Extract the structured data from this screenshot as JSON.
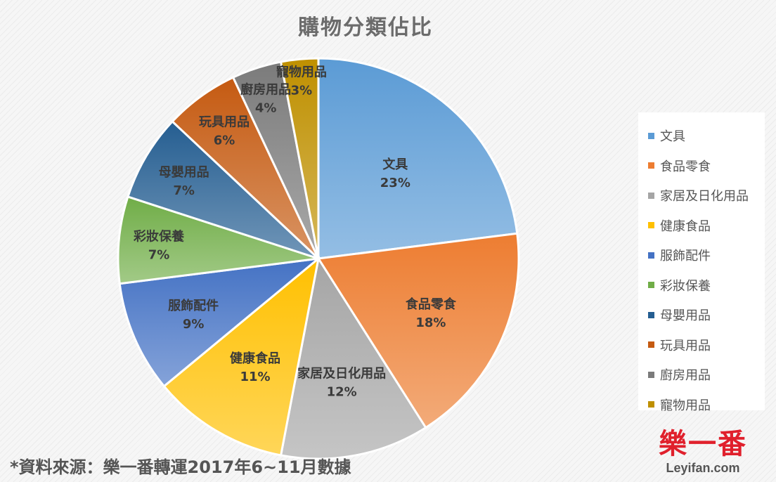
{
  "chart_data": {
    "type": "pie",
    "title": "購物分類佔比",
    "categories": [
      "文具",
      "食品零食",
      "家居及日化用品",
      "健康食品",
      "服飾配件",
      "彩妝保養",
      "母嬰用品",
      "玩具用品",
      "廚房用品",
      "寵物用品"
    ],
    "values": [
      23,
      18,
      12,
      11,
      9,
      7,
      7,
      6,
      4,
      3
    ],
    "data_labels": [
      "23%",
      "18%",
      "12%",
      "11%",
      "9%",
      "7%",
      "7%",
      "6%",
      "4%",
      "3%"
    ],
    "colors": [
      "#5b9bd5",
      "#ed7d31",
      "#a5a5a5",
      "#ffc000",
      "#4472c4",
      "#70ad47",
      "#255e91",
      "#c55a11",
      "#7b7b7b",
      "#bf9000"
    ],
    "legend_position": "right",
    "start_angle": "12 o'clock, clockwise"
  },
  "source_note": "*資料來源：樂一番轉運2017年6~11月數據",
  "logo": {
    "mark": "樂一番",
    "url": "Leyifan.com"
  }
}
